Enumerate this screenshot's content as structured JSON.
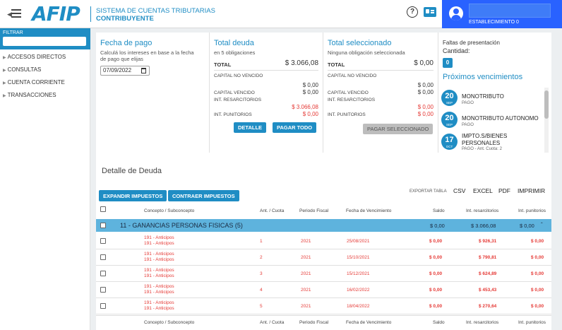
{
  "header": {
    "logo_text": "AFIP",
    "system_title": "SISTEMA DE CUENTAS TRIBUTARIAS",
    "system_subtitle": "CONTRIBUYENTE",
    "help_icon": "question-circle-icon",
    "card_icon": "id-card-icon",
    "user_name": "",
    "establishment": "ESTABLECIMIENTO 0"
  },
  "sidebar": {
    "filter_label": "FILTRAR",
    "filter_placeholder": "",
    "items": [
      {
        "label": "ACCESOS DIRECTOS"
      },
      {
        "label": "CONSULTAS"
      },
      {
        "label": "CUENTA CORRIENTE"
      },
      {
        "label": "TRANSACCIONES"
      }
    ]
  },
  "fecha_pago": {
    "title": "Fecha de pago",
    "description_line1": "Calculá los intereses en base a la fecha",
    "description_line2": "de pago que elijas",
    "value": "07/09/2022"
  },
  "total_deuda": {
    "title": "Total deuda",
    "subtitle": "en 5 obligaciones",
    "total_label": "TOTAL",
    "total_value": "$ 3.066,08",
    "capital_no_vencido_label": "CAPITAL NO VENCIDO",
    "capital_no_vencido_value": "$ 0,00",
    "capital_vencido_label": "CAPITAL VENCIDO",
    "capital_vencido_value": "$ 0,00",
    "int_resarcitorios_label": "INT. RESARCITORIOS",
    "int_resarcitorios_value": "$ 3.066,08",
    "int_punitorios_label": "INT. PUNITORIOS",
    "int_punitorios_value": "$ 0,00",
    "btn_detalle": "DETALLE",
    "btn_pagar_todo": "PAGAR TODO"
  },
  "total_seleccionado": {
    "title": "Total seleccionado",
    "subtitle": "Ninguna obligación seleccionada",
    "total_label": "TOTAL",
    "total_value": "$ 0,00",
    "capital_no_vencido_label": "CAPITAL NO VENCIDO",
    "capital_no_vencido_value": "$ 0,00",
    "capital_vencido_label": "CAPITAL VENCIDO",
    "capital_vencido_value": "$ 0,00",
    "int_resarcitorios_label": "INT. RESARCITORIOS",
    "int_resarcitorios_value": "$ 0,00",
    "int_punitorios_label": "INT. PUNITORIOS",
    "int_punitorios_value": "$ 0,00",
    "btn_pagar_seleccionado": "PAGAR SELECCIONADO"
  },
  "faltas": {
    "title": "Faltas de presentación",
    "cantidad_label": "Cantidad:",
    "cantidad_value": "0",
    "proximos_title": "Próximos vencimientos",
    "items": [
      {
        "day": "20",
        "month": "SEP",
        "title": "MONOTRIBUTO",
        "sub": "PAGO"
      },
      {
        "day": "20",
        "month": "SEP",
        "title": "MONOTRIBUTO AUTONOMO",
        "sub": "PAGO"
      },
      {
        "day": "17",
        "month": "OCT",
        "title": "IMPTO.S/BIENES",
        "title2": "PERSONALES",
        "sub": "PAGO - Ant. Cuota: 2"
      }
    ]
  },
  "detalle": {
    "title": "Detalle de Deuda",
    "btn_expandir": "EXPANDIR IMPUESTOS",
    "btn_contraer": "CONTRAER IMPUESTOS",
    "export_label": "EXPORTAR TABLA",
    "export_csv": "CSV",
    "export_excel": "EXCEL",
    "export_pdf": "PDF",
    "export_print": "IMPRIMIR",
    "columns": {
      "concepto": "Concepto / Subconcepto",
      "cuota": "Ant. / Cuota",
      "periodo": "Periodo Fiscal",
      "vencimiento": "Fecha de Vencimiento",
      "saldo": "Saldo",
      "resarcitorios": "Int. resarcitorios",
      "punitorios": "Int. punitorios"
    },
    "group": {
      "label": "11 - GANANCIAS PERSONAS FISICAS (5)",
      "saldo": "$ 0,00",
      "resarcitorios": "$ 3.066,08",
      "punitorios": "$ 0,00"
    },
    "rows": [
      {
        "concepto": "191 - Anticipos",
        "subconcepto": "191 - Anticipos",
        "cuota": "1",
        "periodo": "2021",
        "vencimiento": "25/08/2021",
        "saldo": "$ 0,00",
        "resarcitorios": "$ 926,31",
        "punitorios": "$ 0,00"
      },
      {
        "concepto": "191 - Anticipos",
        "subconcepto": "191 - Anticipos",
        "cuota": "2",
        "periodo": "2021",
        "vencimiento": "15/10/2021",
        "saldo": "$ 0,00",
        "resarcitorios": "$ 790,81",
        "punitorios": "$ 0,00"
      },
      {
        "concepto": "191 - Anticipos",
        "subconcepto": "191 - Anticipos",
        "cuota": "3",
        "periodo": "2021",
        "vencimiento": "15/12/2021",
        "saldo": "$ 0,00",
        "resarcitorios": "$ 624,89",
        "punitorios": "$ 0,00"
      },
      {
        "concepto": "191 - Anticipos",
        "subconcepto": "191 - Anticipos",
        "cuota": "4",
        "periodo": "2021",
        "vencimiento": "16/02/2022",
        "saldo": "$ 0,00",
        "resarcitorios": "$ 453,43",
        "punitorios": "$ 0,00"
      },
      {
        "concepto": "191 - Anticipos",
        "subconcepto": "191 - Anticipos",
        "cuota": "5",
        "periodo": "2021",
        "vencimiento": "18/04/2022",
        "saldo": "$ 0,00",
        "resarcitorios": "$ 270,64",
        "punitorios": "$ 0,00"
      }
    ]
  },
  "colors": {
    "accent": "#1f8dc4",
    "user_bar": "#2962ff",
    "group_row": "#5eb3dd",
    "negative": "#e53935"
  }
}
